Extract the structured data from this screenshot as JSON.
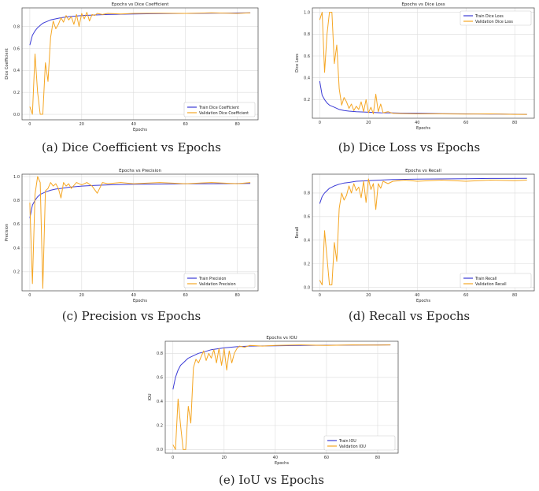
{
  "chart_data": [
    {
      "id": "a",
      "type": "line",
      "title": "Epochs vs Dice Coefficient",
      "xlabel": "Epochs",
      "ylabel": "Dice Coefficient",
      "caption": "(a) Dice Coefficient vs Epochs",
      "xlim": [
        -3,
        88
      ],
      "ylim": [
        -0.05,
        0.97
      ],
      "xticks": [
        0,
        20,
        40,
        60,
        80
      ],
      "yticks": [
        0.0,
        0.2,
        0.4,
        0.6,
        0.8
      ],
      "ytick_labels": [
        "0.0",
        "0.2",
        "0.4",
        "0.6",
        "0.8"
      ],
      "grid": true,
      "legend": "lower-right",
      "series": [
        {
          "name": "Train Dice Coefficient",
          "color": "#3b3bd6",
          "x": [
            0,
            1,
            2,
            3,
            4,
            5,
            6,
            8,
            10,
            12,
            15,
            20,
            25,
            30,
            40,
            50,
            60,
            70,
            85
          ],
          "y": [
            0.63,
            0.72,
            0.76,
            0.79,
            0.81,
            0.83,
            0.84,
            0.86,
            0.87,
            0.88,
            0.89,
            0.9,
            0.905,
            0.91,
            0.915,
            0.918,
            0.92,
            0.922,
            0.925
          ]
        },
        {
          "name": "Validation Dice Coefficient",
          "color": "#f5a623",
          "x": [
            0,
            1,
            2,
            3,
            4,
            5,
            6,
            7,
            8,
            9,
            10,
            11,
            12,
            13,
            14,
            15,
            16,
            17,
            18,
            19,
            20,
            21,
            22,
            23,
            24,
            25,
            26,
            28,
            30,
            35,
            40,
            50,
            60,
            70,
            80,
            85
          ],
          "y": [
            0.07,
            0.0,
            0.55,
            0.2,
            0.0,
            0.0,
            0.47,
            0.3,
            0.7,
            0.85,
            0.78,
            0.82,
            0.88,
            0.84,
            0.9,
            0.86,
            0.89,
            0.82,
            0.91,
            0.8,
            0.92,
            0.87,
            0.93,
            0.85,
            0.91,
            0.9,
            0.92,
            0.91,
            0.92,
            0.915,
            0.92,
            0.922,
            0.92,
            0.925,
            0.92,
            0.925
          ]
        }
      ]
    },
    {
      "id": "b",
      "type": "line",
      "title": "Epochs vs Dice Loss",
      "xlabel": "Epochs",
      "ylabel": "Dice Loss",
      "caption": "(b) Dice Loss vs Epochs",
      "xlim": [
        -3,
        88
      ],
      "ylim": [
        0.03,
        1.04
      ],
      "xticks": [
        0,
        20,
        40,
        60,
        80
      ],
      "yticks": [
        0.2,
        0.4,
        0.6,
        0.8,
        1.0
      ],
      "ytick_labels": [
        "0.2",
        "0.4",
        "0.6",
        "0.8",
        "1.0"
      ],
      "grid": true,
      "legend": "upper-right",
      "series": [
        {
          "name": "Train Dice Loss",
          "color": "#3b3bd6",
          "x": [
            0,
            1,
            2,
            3,
            4,
            5,
            6,
            8,
            10,
            12,
            15,
            20,
            25,
            30,
            40,
            50,
            60,
            70,
            85
          ],
          "y": [
            0.37,
            0.24,
            0.2,
            0.17,
            0.15,
            0.14,
            0.13,
            0.11,
            0.1,
            0.095,
            0.09,
            0.085,
            0.08,
            0.078,
            0.075,
            0.072,
            0.07,
            0.068,
            0.065
          ]
        },
        {
          "name": "Validation Dice Loss",
          "color": "#f5a623",
          "x": [
            0,
            1,
            2,
            3,
            4,
            5,
            6,
            7,
            8,
            9,
            10,
            11,
            12,
            13,
            14,
            15,
            16,
            17,
            18,
            19,
            20,
            21,
            22,
            23,
            24,
            25,
            26,
            28,
            30,
            40,
            50,
            60,
            70,
            80,
            85
          ],
          "y": [
            0.93,
            1.0,
            0.45,
            0.8,
            1.0,
            1.0,
            0.53,
            0.7,
            0.3,
            0.15,
            0.22,
            0.18,
            0.12,
            0.16,
            0.1,
            0.14,
            0.11,
            0.18,
            0.09,
            0.2,
            0.08,
            0.13,
            0.07,
            0.25,
            0.09,
            0.16,
            0.08,
            0.09,
            0.075,
            0.07,
            0.07,
            0.068,
            0.07,
            0.065,
            0.065
          ]
        }
      ]
    },
    {
      "id": "c",
      "type": "line",
      "title": "Epochs vs Precision",
      "xlabel": "Epochs",
      "ylabel": "Precision",
      "caption": "(c) Precision vs Epochs",
      "xlim": [
        -3,
        88
      ],
      "ylim": [
        0.04,
        1.02
      ],
      "xticks": [
        0,
        20,
        40,
        60,
        80
      ],
      "yticks": [
        0.2,
        0.4,
        0.6,
        0.8,
        1.0
      ],
      "ytick_labels": [
        "0.2",
        "0.4",
        "0.6",
        "0.8",
        "1.0"
      ],
      "grid": true,
      "legend": "lower-right",
      "series": [
        {
          "name": "Train Precision",
          "color": "#3b3bd6",
          "x": [
            0,
            1,
            2,
            3,
            4,
            5,
            6,
            8,
            10,
            12,
            15,
            20,
            25,
            30,
            40,
            50,
            60,
            70,
            85
          ],
          "y": [
            0.65,
            0.76,
            0.8,
            0.83,
            0.85,
            0.86,
            0.87,
            0.885,
            0.895,
            0.9,
            0.91,
            0.92,
            0.925,
            0.93,
            0.935,
            0.937,
            0.94,
            0.94,
            0.942
          ]
        },
        {
          "name": "Validation Precision",
          "color": "#f5a623",
          "x": [
            0,
            1,
            2,
            3,
            4,
            5,
            6,
            7,
            8,
            9,
            10,
            11,
            12,
            13,
            14,
            15,
            16,
            18,
            20,
            22,
            24,
            26,
            28,
            30,
            35,
            40,
            50,
            60,
            70,
            80,
            85
          ],
          "y": [
            0.78,
            0.1,
            0.85,
            1.0,
            0.95,
            0.06,
            0.88,
            0.9,
            0.95,
            0.92,
            0.94,
            0.9,
            0.82,
            0.95,
            0.92,
            0.94,
            0.9,
            0.95,
            0.93,
            0.95,
            0.92,
            0.86,
            0.95,
            0.94,
            0.95,
            0.94,
            0.95,
            0.94,
            0.95,
            0.94,
            0.95
          ]
        }
      ]
    },
    {
      "id": "d",
      "type": "line",
      "title": "Epochs vs Recall",
      "xlabel": "Epochs",
      "ylabel": "Recall",
      "caption": "(d) Recall vs Epochs",
      "xlim": [
        -3,
        88
      ],
      "ylim": [
        -0.03,
        0.96
      ],
      "xticks": [
        0,
        20,
        40,
        60,
        80
      ],
      "yticks": [
        0.0,
        0.2,
        0.4,
        0.6,
        0.8
      ],
      "ytick_labels": [
        "0.0",
        "0.2",
        "0.4",
        "0.6",
        "0.8"
      ],
      "grid": true,
      "legend": "lower-right",
      "series": [
        {
          "name": "Train Recall",
          "color": "#3b3bd6",
          "x": [
            0,
            1,
            2,
            3,
            4,
            5,
            6,
            8,
            10,
            12,
            15,
            20,
            25,
            30,
            40,
            50,
            60,
            70,
            85
          ],
          "y": [
            0.71,
            0.77,
            0.8,
            0.82,
            0.84,
            0.85,
            0.86,
            0.875,
            0.885,
            0.89,
            0.9,
            0.905,
            0.91,
            0.915,
            0.918,
            0.92,
            0.922,
            0.924,
            0.925
          ]
        },
        {
          "name": "Validation Recall",
          "color": "#f5a623",
          "x": [
            0,
            1,
            2,
            3,
            4,
            5,
            6,
            7,
            8,
            9,
            10,
            11,
            12,
            13,
            14,
            15,
            16,
            17,
            18,
            19,
            20,
            21,
            22,
            23,
            24,
            25,
            26,
            28,
            30,
            35,
            40,
            50,
            60,
            70,
            80,
            85
          ],
          "y": [
            0.06,
            0.02,
            0.48,
            0.25,
            0.02,
            0.02,
            0.38,
            0.22,
            0.67,
            0.8,
            0.74,
            0.78,
            0.86,
            0.8,
            0.88,
            0.82,
            0.85,
            0.76,
            0.9,
            0.72,
            0.92,
            0.83,
            0.88,
            0.66,
            0.88,
            0.84,
            0.9,
            0.88,
            0.9,
            0.91,
            0.9,
            0.91,
            0.9,
            0.91,
            0.905,
            0.91
          ]
        }
      ]
    },
    {
      "id": "e",
      "type": "line",
      "title": "Epochs vs IOU",
      "xlabel": "Epochs",
      "ylabel": "IOU",
      "caption": "(e) IoU vs Epochs",
      "xlim": [
        -3,
        88
      ],
      "ylim": [
        -0.03,
        0.9
      ],
      "xticks": [
        0,
        20,
        40,
        60,
        80
      ],
      "yticks": [
        0.0,
        0.2,
        0.4,
        0.6,
        0.8
      ],
      "ytick_labels": [
        "0.0",
        "0.2",
        "0.4",
        "0.6",
        "0.8"
      ],
      "grid": true,
      "legend": "lower-right",
      "series": [
        {
          "name": "Train IOU",
          "color": "#3b3bd6",
          "x": [
            0,
            1,
            2,
            3,
            4,
            5,
            6,
            8,
            10,
            12,
            15,
            20,
            25,
            30,
            40,
            50,
            60,
            70,
            85
          ],
          "y": [
            0.5,
            0.6,
            0.66,
            0.7,
            0.72,
            0.74,
            0.76,
            0.78,
            0.8,
            0.81,
            0.83,
            0.845,
            0.855,
            0.86,
            0.862,
            0.865,
            0.867,
            0.868,
            0.87
          ]
        },
        {
          "name": "Validation IOU",
          "color": "#f5a623",
          "x": [
            0,
            1,
            2,
            3,
            4,
            5,
            6,
            7,
            8,
            9,
            10,
            11,
            12,
            13,
            14,
            15,
            16,
            17,
            18,
            19,
            20,
            21,
            22,
            23,
            24,
            25,
            26,
            28,
            30,
            35,
            40,
            50,
            60,
            70,
            80,
            85
          ],
          "y": [
            0.04,
            0.0,
            0.42,
            0.2,
            0.0,
            0.0,
            0.36,
            0.22,
            0.68,
            0.75,
            0.72,
            0.77,
            0.82,
            0.74,
            0.8,
            0.76,
            0.83,
            0.72,
            0.84,
            0.7,
            0.84,
            0.66,
            0.82,
            0.72,
            0.8,
            0.84,
            0.86,
            0.85,
            0.865,
            0.86,
            0.865,
            0.87,
            0.865,
            0.87,
            0.868,
            0.87
          ]
        }
      ]
    }
  ]
}
